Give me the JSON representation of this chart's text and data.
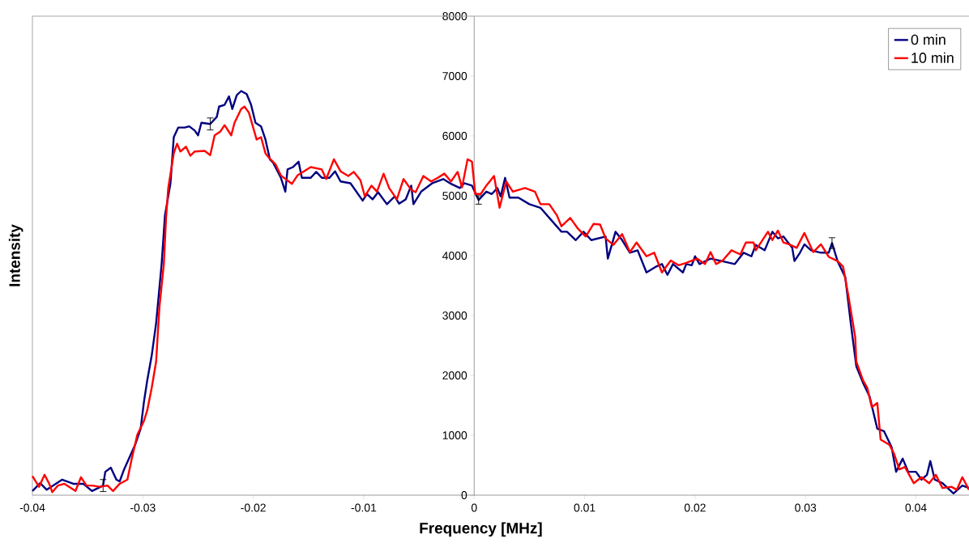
{
  "chart_data": {
    "type": "line",
    "xlabel": "Frequency [MHz]",
    "ylabel": "Intensity",
    "xlim": [
      -0.04,
      0.0448
    ],
    "ylim": [
      0,
      8000
    ],
    "xticks": [
      -0.04,
      -0.03,
      -0.02,
      -0.01,
      0,
      0.01,
      0.02,
      0.03,
      0.04
    ],
    "yticks": [
      0,
      1000,
      2000,
      3000,
      4000,
      5000,
      6000,
      7000,
      8000
    ],
    "legend": "top right",
    "series": [
      {
        "name": "0 min",
        "color": "#000080",
        "x": [
          -0.04,
          -0.0393,
          -0.0387,
          -0.0373,
          -0.0363,
          -0.0354,
          -0.0346,
          -0.0336,
          -0.0334,
          -0.0329,
          -0.0324,
          -0.0321,
          -0.0317,
          -0.0307,
          -0.0302,
          -0.0299,
          -0.0296,
          -0.0292,
          -0.0288,
          -0.0283,
          -0.028,
          -0.0275,
          -0.0272,
          -0.0268,
          -0.0262,
          -0.0258,
          -0.0253,
          -0.025,
          -0.0247,
          -0.0239,
          -0.0233,
          -0.0231,
          -0.0226,
          -0.0222,
          -0.0219,
          -0.0215,
          -0.0211,
          -0.0206,
          -0.0202,
          -0.0198,
          -0.0193,
          -0.0189,
          -0.0185,
          -0.0182,
          -0.0175,
          -0.0171,
          -0.0169,
          -0.0164,
          -0.0159,
          -0.0156,
          -0.0148,
          -0.0143,
          -0.0138,
          -0.0131,
          -0.0126,
          -0.0121,
          -0.0112,
          -0.0101,
          -0.0097,
          -0.0092,
          -0.0087,
          -0.0079,
          -0.0072,
          -0.0068,
          -0.0062,
          -0.0057,
          -0.0055,
          -0.0048,
          -0.0038,
          -0.0028,
          -0.0021,
          -0.0013,
          -0.0009,
          -0.0002,
          0.0004,
          0.0011,
          0.0016,
          0.0021,
          0.0024,
          0.0028,
          0.0032,
          0.004,
          0.005,
          0.006,
          0.007,
          0.0079,
          0.0084,
          0.0092,
          0.0099,
          0.0106,
          0.0119,
          0.0121,
          0.0128,
          0.0134,
          0.0141,
          0.0148,
          0.0156,
          0.0165,
          0.017,
          0.0175,
          0.018,
          0.0189,
          0.0192,
          0.0197,
          0.02,
          0.0204,
          0.0214,
          0.0224,
          0.0236,
          0.0244,
          0.0251,
          0.0255,
          0.0263,
          0.027,
          0.0275,
          0.028,
          0.0288,
          0.029,
          0.0295,
          0.0299,
          0.0305,
          0.0314,
          0.0321,
          0.0324,
          0.0329,
          0.0336,
          0.0341,
          0.0346,
          0.0352,
          0.0358,
          0.0365,
          0.0371,
          0.0378,
          0.0382,
          0.0388,
          0.0393,
          0.04,
          0.0405,
          0.041,
          0.0413,
          0.0417,
          0.0424,
          0.0434,
          0.0442,
          0.0448
        ],
        "values": [
          70,
          200,
          90,
          260,
          190,
          190,
          70,
          160,
          390,
          460,
          260,
          230,
          430,
          840,
          1110,
          1560,
          1920,
          2330,
          2870,
          3860,
          4670,
          5210,
          5980,
          6140,
          6140,
          6160,
          6090,
          6010,
          6220,
          6200,
          6320,
          6490,
          6520,
          6660,
          6450,
          6680,
          6750,
          6700,
          6520,
          6220,
          6160,
          5940,
          5610,
          5550,
          5300,
          5070,
          5440,
          5480,
          5570,
          5300,
          5300,
          5400,
          5300,
          5300,
          5410,
          5240,
          5210,
          4920,
          5030,
          4940,
          5060,
          4860,
          4990,
          4870,
          4940,
          5170,
          4860,
          5070,
          5210,
          5280,
          5200,
          5130,
          5210,
          5170,
          4930,
          5070,
          5030,
          5130,
          4990,
          5300,
          4970,
          4970,
          4860,
          4800,
          4590,
          4400,
          4400,
          4260,
          4400,
          4260,
          4320,
          3950,
          4400,
          4260,
          4050,
          4090,
          3720,
          3820,
          3860,
          3680,
          3860,
          3720,
          3860,
          3840,
          3990,
          3860,
          3950,
          3910,
          3860,
          4050,
          3990,
          4180,
          4090,
          4400,
          4290,
          4320,
          4130,
          3910,
          4050,
          4190,
          4090,
          4050,
          4050,
          4210,
          3910,
          3640,
          2870,
          2150,
          1880,
          1650,
          1110,
          1070,
          800,
          390,
          610,
          390,
          390,
          260,
          340,
          570,
          260,
          200,
          30,
          160,
          120
        ],
        "errors": [
          null,
          null,
          null,
          null,
          null,
          null,
          null,
          100,
          null,
          null,
          null,
          null,
          null,
          null,
          null,
          null,
          null,
          null,
          null,
          null,
          null,
          null,
          null,
          null,
          null,
          null,
          null,
          null,
          null,
          100,
          null,
          null,
          null,
          null,
          null,
          null,
          null,
          null,
          null,
          null,
          null,
          null,
          null,
          null,
          null,
          null,
          null,
          null,
          null,
          null,
          null,
          null,
          null,
          null,
          null,
          null,
          null,
          null,
          null,
          null,
          null,
          null,
          null,
          null,
          null,
          null,
          null,
          null,
          null,
          null,
          null,
          null,
          null,
          null,
          70,
          null,
          null,
          null,
          null,
          null,
          null,
          null,
          null,
          null,
          null,
          null,
          null,
          null,
          null,
          null,
          null,
          null,
          null,
          null,
          null,
          null,
          null,
          null,
          null,
          null,
          null,
          null,
          null,
          null,
          null,
          null,
          null,
          null,
          null,
          null,
          null,
          null,
          null,
          null,
          null,
          null,
          null,
          null,
          null,
          null,
          null,
          null,
          null,
          90,
          null,
          null,
          null,
          null,
          null,
          null,
          null,
          null,
          null,
          null,
          null,
          null,
          null,
          null,
          null,
          null,
          null,
          null,
          null,
          null,
          null
        ]
      },
      {
        "name": "10 min",
        "color": "#ff0000",
        "x": [
          -0.04,
          -0.0394,
          -0.0389,
          -0.0385,
          -0.0382,
          -0.0377,
          -0.0371,
          -0.0361,
          -0.0356,
          -0.0351,
          -0.0346,
          -0.0339,
          -0.0332,
          -0.0327,
          -0.0321,
          -0.0314,
          -0.031,
          -0.0305,
          -0.0299,
          -0.0296,
          -0.0292,
          -0.0288,
          -0.0285,
          -0.0281,
          -0.0279,
          -0.0277,
          -0.0272,
          -0.0269,
          -0.0266,
          -0.0261,
          -0.0257,
          -0.0253,
          -0.0244,
          -0.0239,
          -0.0235,
          -0.023,
          -0.0226,
          -0.022,
          -0.0217,
          -0.0211,
          -0.0208,
          -0.0204,
          -0.0197,
          -0.0193,
          -0.0189,
          -0.0186,
          -0.018,
          -0.0175,
          -0.0165,
          -0.016,
          -0.0148,
          -0.0138,
          -0.0134,
          -0.0127,
          -0.0121,
          -0.0114,
          -0.0109,
          -0.0103,
          -0.0099,
          -0.0093,
          -0.0088,
          -0.0082,
          -0.0077,
          -0.007,
          -0.0064,
          -0.0057,
          -0.0053,
          -0.0046,
          -0.0039,
          -0.0033,
          -0.0027,
          -0.0021,
          -0.0015,
          -0.0011,
          -0.0006,
          -0.0002,
          0.0001,
          0.0006,
          0.0011,
          0.0018,
          0.0023,
          0.0029,
          0.0035,
          0.0046,
          0.0055,
          0.006,
          0.0068,
          0.0075,
          0.0079,
          0.0087,
          0.0094,
          0.0101,
          0.0108,
          0.0114,
          0.0119,
          0.0126,
          0.0134,
          0.0141,
          0.0147,
          0.0156,
          0.0163,
          0.017,
          0.0178,
          0.0185,
          0.0192,
          0.0202,
          0.0209,
          0.0214,
          0.0219,
          0.0225,
          0.0233,
          0.0241,
          0.0246,
          0.0253,
          0.0255,
          0.0266,
          0.027,
          0.0275,
          0.028,
          0.0285,
          0.0292,
          0.0299,
          0.0307,
          0.0314,
          0.0321,
          0.0329,
          0.0334,
          0.0339,
          0.0345,
          0.0346,
          0.0352,
          0.0356,
          0.036,
          0.0365,
          0.0368,
          0.0376,
          0.038,
          0.0385,
          0.039,
          0.0398,
          0.0405,
          0.0412,
          0.0418,
          0.0424,
          0.0432,
          0.0437,
          0.0442,
          0.0448
        ],
        "values": [
          320,
          140,
          340,
          200,
          50,
          160,
          190,
          70,
          300,
          160,
          160,
          140,
          160,
          70,
          190,
          260,
          610,
          1010,
          1240,
          1420,
          1790,
          2230,
          3140,
          3860,
          4630,
          5130,
          5710,
          5870,
          5740,
          5820,
          5670,
          5740,
          5750,
          5680,
          6010,
          6070,
          6180,
          6010,
          6220,
          6450,
          6490,
          6390,
          5940,
          5980,
          5710,
          5640,
          5530,
          5340,
          5200,
          5340,
          5480,
          5440,
          5280,
          5610,
          5410,
          5330,
          5400,
          5260,
          4990,
          5170,
          5070,
          5370,
          5130,
          4940,
          5280,
          5100,
          5060,
          5330,
          5240,
          5300,
          5370,
          5240,
          5400,
          5140,
          5610,
          5570,
          5030,
          5030,
          5170,
          5330,
          4800,
          5240,
          5070,
          5130,
          5070,
          4860,
          4860,
          4670,
          4490,
          4630,
          4450,
          4320,
          4530,
          4520,
          4290,
          4180,
          4360,
          4060,
          4220,
          3990,
          4050,
          3720,
          3920,
          3840,
          3880,
          3950,
          3860,
          4060,
          3860,
          3920,
          4090,
          4020,
          4220,
          4220,
          4090,
          4400,
          4260,
          4420,
          4220,
          4190,
          4130,
          4380,
          4060,
          4190,
          3980,
          3910,
          3820,
          3310,
          2640,
          2230,
          1920,
          1790,
          1470,
          1540,
          930,
          840,
          700,
          430,
          470,
          200,
          300,
          200,
          340,
          120,
          140,
          90,
          300,
          90
        ]
      }
    ]
  }
}
